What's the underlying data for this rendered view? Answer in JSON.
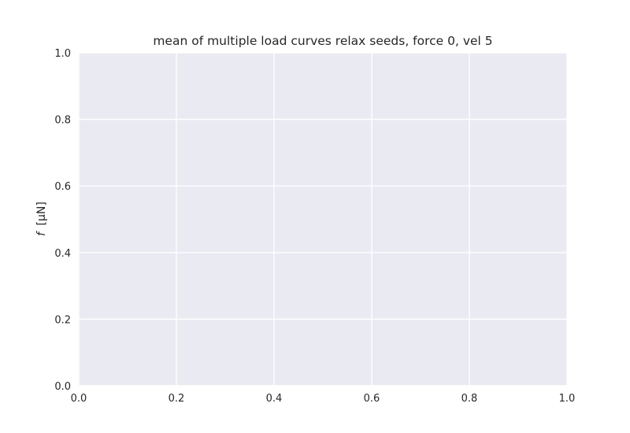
{
  "chart_data": {
    "type": "line",
    "title": "mean of multiple load curves relax seeds, force 0, vel 5",
    "xlabel": "",
    "ylabel": {
      "symbol": "f",
      "unit": "[μN]"
    },
    "xlim": [
      0.0,
      1.0
    ],
    "ylim": [
      0.0,
      1.0
    ],
    "x_ticks": [
      0.0,
      0.2,
      0.4,
      0.6,
      0.8,
      1.0
    ],
    "y_ticks": [
      0.0,
      0.2,
      0.4,
      0.6,
      0.8,
      1.0
    ],
    "x_tick_labels": [
      "0.0",
      "0.2",
      "0.4",
      "0.6",
      "0.8",
      "1.0"
    ],
    "y_tick_labels": [
      "0.0",
      "0.2",
      "0.4",
      "0.6",
      "0.8",
      "1.0"
    ],
    "grid": true,
    "series": [],
    "colors": {
      "background": "#eaeaf2",
      "grid": "#ffffff",
      "text": "#262626"
    }
  }
}
